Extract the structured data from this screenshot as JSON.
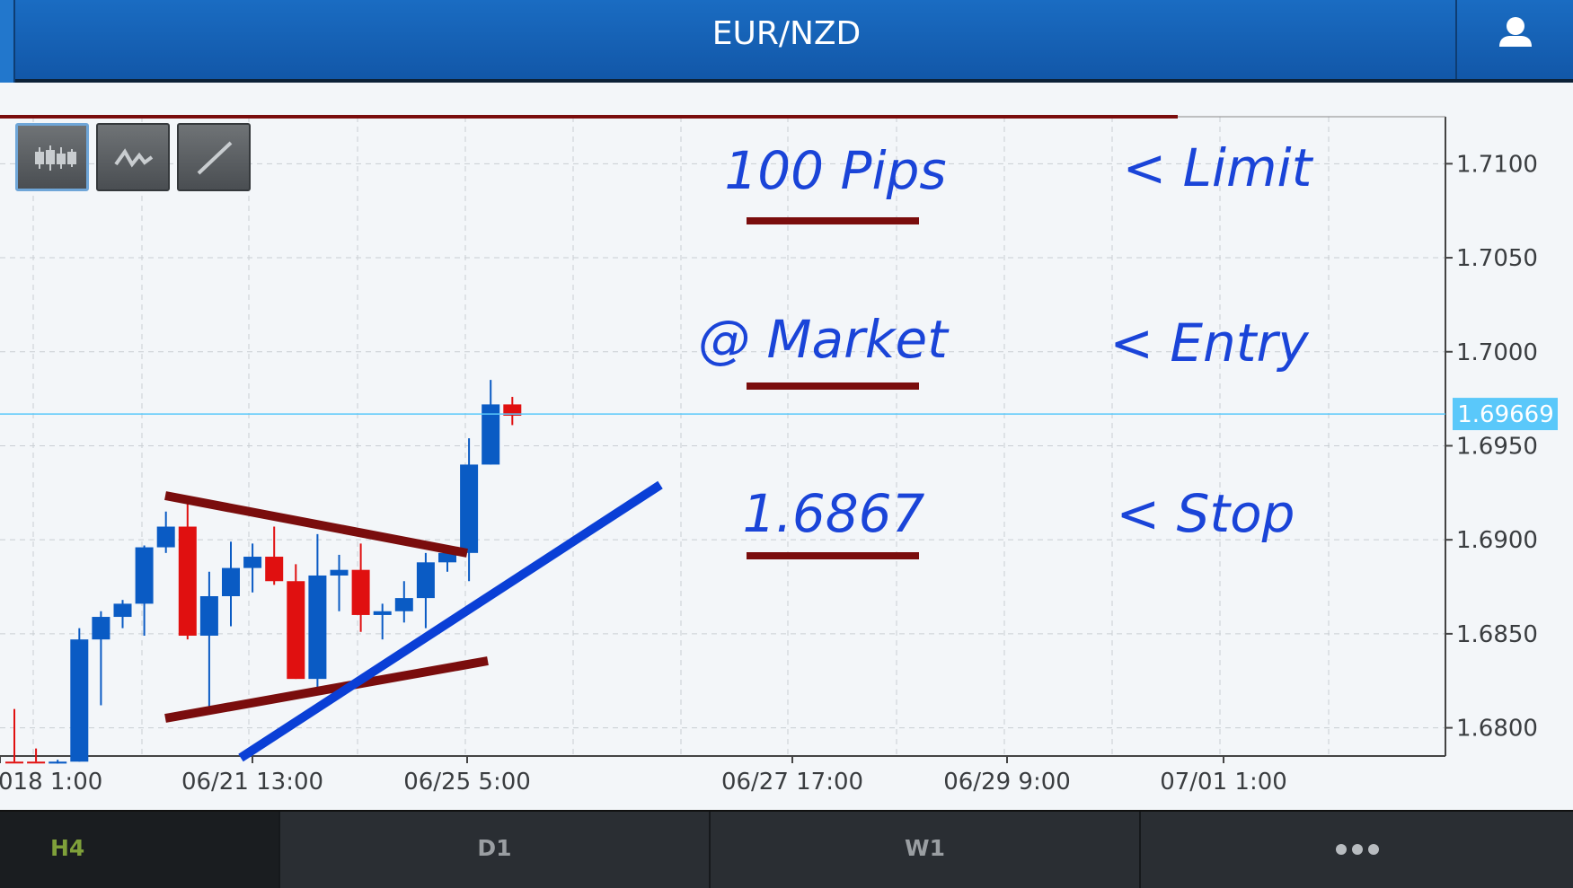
{
  "header": {
    "title": "EUR/NZD",
    "user_icon": "user-icon"
  },
  "toolbar": {
    "buttons": [
      {
        "icon": "candlestick-icon",
        "active": true
      },
      {
        "icon": "line-chart-icon",
        "active": false
      },
      {
        "icon": "draw-line-icon",
        "active": false
      }
    ]
  },
  "chart_data": {
    "type": "candlestick",
    "symbol": "EUR/NZD",
    "timeframe": "H4",
    "ylim": [
      1.6785,
      1.7125
    ],
    "y_ticks": [
      "1.7100",
      "1.7050",
      "1.7000",
      "1.6950",
      "1.6900",
      "1.6850",
      "1.6800"
    ],
    "x_ticks": [
      "018 1:00",
      "06/21 13:00",
      "06/25 5:00",
      "06/27 17:00",
      "06/29 9:00",
      "07/01 1:00"
    ],
    "current_price": "1.69669",
    "candles": [
      {
        "o": 1.6782,
        "h": 1.681,
        "l": 1.6782,
        "c": 1.6782,
        "dir": "down"
      },
      {
        "o": 1.6782,
        "h": 1.6789,
        "l": 1.6782,
        "c": 1.6782,
        "dir": "down"
      },
      {
        "o": 1.6781,
        "h": 1.6783,
        "l": 1.6781,
        "c": 1.6782,
        "dir": "up"
      },
      {
        "o": 1.6782,
        "h": 1.6853,
        "l": 1.6782,
        "c": 1.6847,
        "dir": "up"
      },
      {
        "o": 1.6847,
        "h": 1.6862,
        "l": 1.6812,
        "c": 1.6859,
        "dir": "up"
      },
      {
        "o": 1.6859,
        "h": 1.6868,
        "l": 1.6853,
        "c": 1.6866,
        "dir": "up"
      },
      {
        "o": 1.6866,
        "h": 1.6897,
        "l": 1.6849,
        "c": 1.6896,
        "dir": "up"
      },
      {
        "o": 1.6896,
        "h": 1.6915,
        "l": 1.6893,
        "c": 1.6907,
        "dir": "up"
      },
      {
        "o": 1.6907,
        "h": 1.6922,
        "l": 1.6847,
        "c": 1.6849,
        "dir": "down"
      },
      {
        "o": 1.6849,
        "h": 1.6883,
        "l": 1.6808,
        "c": 1.687,
        "dir": "up"
      },
      {
        "o": 1.687,
        "h": 1.6899,
        "l": 1.6854,
        "c": 1.6885,
        "dir": "up"
      },
      {
        "o": 1.6885,
        "h": 1.6898,
        "l": 1.6872,
        "c": 1.6891,
        "dir": "up"
      },
      {
        "o": 1.6891,
        "h": 1.6907,
        "l": 1.6876,
        "c": 1.6878,
        "dir": "down"
      },
      {
        "o": 1.6878,
        "h": 1.6887,
        "l": 1.6826,
        "c": 1.6826,
        "dir": "down"
      },
      {
        "o": 1.6826,
        "h": 1.6903,
        "l": 1.6819,
        "c": 1.6881,
        "dir": "up"
      },
      {
        "o": 1.6881,
        "h": 1.6892,
        "l": 1.6862,
        "c": 1.6884,
        "dir": "up"
      },
      {
        "o": 1.6884,
        "h": 1.6898,
        "l": 1.6851,
        "c": 1.686,
        "dir": "down"
      },
      {
        "o": 1.686,
        "h": 1.6866,
        "l": 1.6847,
        "c": 1.6862,
        "dir": "up"
      },
      {
        "o": 1.6862,
        "h": 1.6878,
        "l": 1.6856,
        "c": 1.6869,
        "dir": "up"
      },
      {
        "o": 1.6869,
        "h": 1.6893,
        "l": 1.6853,
        "c": 1.6888,
        "dir": "up"
      },
      {
        "o": 1.6888,
        "h": 1.6896,
        "l": 1.6883,
        "c": 1.6893,
        "dir": "up"
      },
      {
        "o": 1.6893,
        "h": 1.6954,
        "l": 1.6878,
        "c": 1.694,
        "dir": "up"
      },
      {
        "o": 1.694,
        "h": 1.6985,
        "l": 1.694,
        "c": 1.6972,
        "dir": "up"
      },
      {
        "o": 1.6972,
        "h": 1.6976,
        "l": 1.6961,
        "c": 1.6966,
        "dir": "down"
      }
    ]
  },
  "annotations": {
    "pips": "100 Pips",
    "limit": "< Limit",
    "market": "@ Market",
    "entry": "< Entry",
    "stop_value": "1.6867",
    "stop": "< Stop"
  },
  "colors": {
    "up": "#0a5bc4",
    "down": "#e01010",
    "trendline": "#7a0d0d",
    "support": "#0a3fd6",
    "price_line": "#5ac8fa",
    "annotation": "#1a44d8"
  },
  "tabs": [
    {
      "label": "H4",
      "active": true
    },
    {
      "label": "D1",
      "active": false
    },
    {
      "label": "W1",
      "active": false
    },
    {
      "label": "",
      "icon": "more-icon",
      "active": false
    }
  ]
}
